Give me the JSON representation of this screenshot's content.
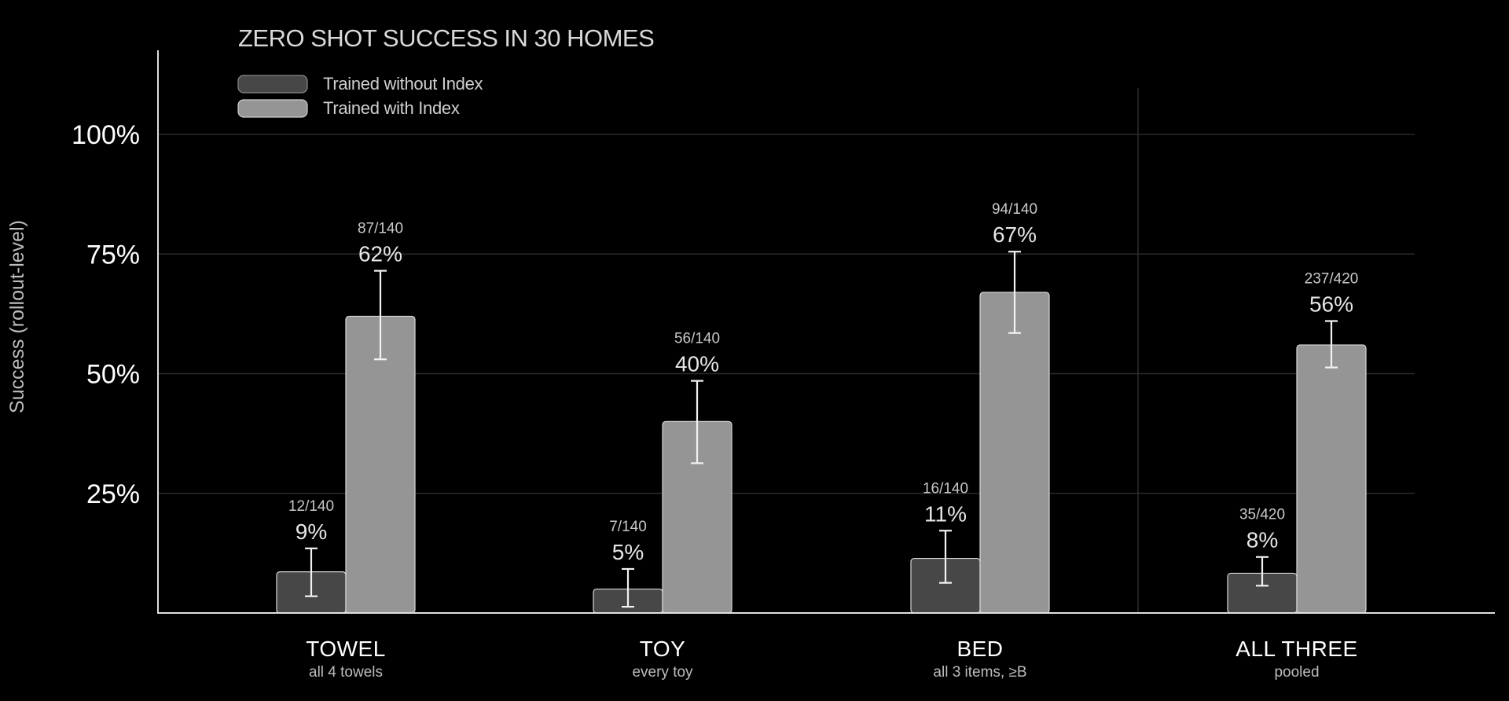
{
  "chart_data": {
    "type": "bar",
    "title": "ZERO SHOT SUCCESS IN 30 HOMES",
    "ylabel": "Success (rollout-level)",
    "ylim": [
      0,
      1.0
    ],
    "yticks": [
      {
        "value": 0.25,
        "label": "25%"
      },
      {
        "value": 0.5,
        "label": "50%"
      },
      {
        "value": 0.75,
        "label": "75%"
      },
      {
        "value": 1.0,
        "label": "100%"
      }
    ],
    "grid": true,
    "legend_position": "top-left",
    "colors": {
      "background": "#000000",
      "without": "#474747",
      "with": "#959595",
      "bar_edge": "#d8d8d8",
      "axis": "#e0e0e0",
      "grid": "#2b2b2b"
    },
    "categories": [
      {
        "name": "TOWEL",
        "sub": "all 4 towels"
      },
      {
        "name": "TOY",
        "sub": "every toy"
      },
      {
        "name": "BED",
        "sub": "all 3 items, ≥B"
      },
      {
        "name": "ALL THREE",
        "sub": "pooled"
      }
    ],
    "series": [
      {
        "name": "Trained without Index",
        "values": [
          0.086,
          0.05,
          0.114,
          0.083
        ],
        "labels": [
          "9%",
          "5%",
          "11%",
          "8%"
        ],
        "fractions": [
          "12/140",
          "7/140",
          "16/140",
          "35/420"
        ],
        "error_low": [
          0.035,
          0.013,
          0.063,
          0.057
        ],
        "error_high": [
          0.135,
          0.092,
          0.172,
          0.117
        ]
      },
      {
        "name": "Trained with Index",
        "values": [
          0.62,
          0.4,
          0.67,
          0.56
        ],
        "labels": [
          "62%",
          "40%",
          "67%",
          "56%"
        ],
        "fractions": [
          "87/140",
          "56/140",
          "94/140",
          "237/420"
        ],
        "error_low": [
          0.53,
          0.313,
          0.585,
          0.513
        ],
        "error_high": [
          0.715,
          0.485,
          0.755,
          0.61
        ]
      }
    ]
  }
}
